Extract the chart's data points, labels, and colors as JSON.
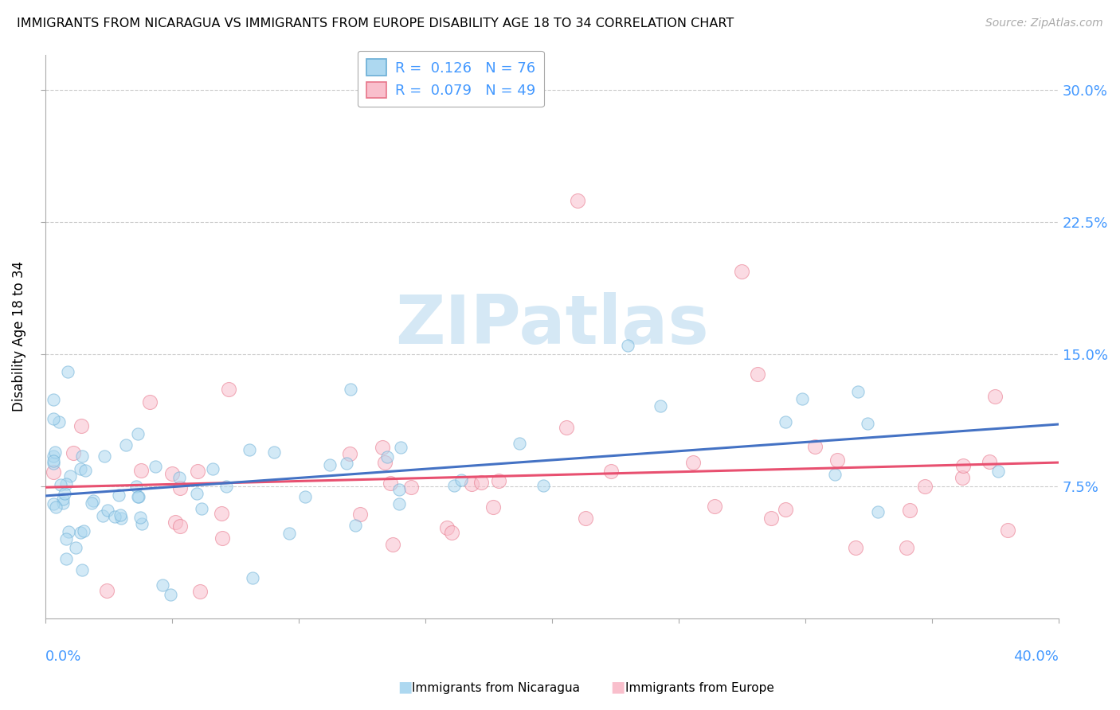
{
  "title": "IMMIGRANTS FROM NICARAGUA VS IMMIGRANTS FROM EUROPE DISABILITY AGE 18 TO 34 CORRELATION CHART",
  "source": "Source: ZipAtlas.com",
  "ylabel": "Disability Age 18 to 34",
  "ylabel_ticks": [
    "7.5%",
    "15.0%",
    "22.5%",
    "30.0%"
  ],
  "ylabel_tick_vals": [
    0.075,
    0.15,
    0.225,
    0.3
  ],
  "xlim": [
    0.0,
    0.4
  ],
  "ylim": [
    0.0,
    0.32
  ],
  "r_nicaragua": 0.126,
  "n_nicaragua": 76,
  "r_europe": 0.079,
  "n_europe": 49,
  "color_nicaragua": "#ADD8F0",
  "color_europe": "#F9BFCC",
  "edge_nicaragua": "#6AAED6",
  "edge_europe": "#E8758A",
  "trendline_color_nicaragua": "#4472C4",
  "trendline_color_europe": "#E85070",
  "background_color": "#FFFFFF",
  "grid_color": "#CCCCCC",
  "tick_label_color": "#4499FF",
  "legend_box_edge": "#AAAAAA",
  "watermark_color": "#D5E8F5",
  "scatter_size": 120,
  "scatter_alpha": 0.55,
  "trendline_lw": 2.2
}
